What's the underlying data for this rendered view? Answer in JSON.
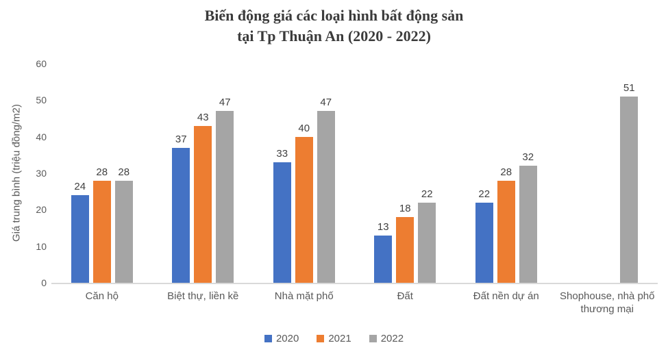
{
  "title": {
    "line1": "Biến động giá các loại hình bất động sản",
    "line2": "tại Tp Thuận An (2020 - 2022)"
  },
  "chart_data": {
    "type": "bar",
    "title": "Biến động giá các loại hình bất động sản tại Tp Thuận An (2020 - 2022)",
    "xlabel": "",
    "ylabel": "Giá trung bình (triệu đồng/m2)",
    "ylim": [
      0,
      60
    ],
    "yticks": [
      0,
      10,
      20,
      30,
      40,
      50,
      60
    ],
    "grid": false,
    "data_labels": true,
    "legend_position": "bottom",
    "categories": [
      "Căn hộ",
      "Biệt thự, liền kề",
      "Nhà mặt phố",
      "Đất",
      "Đất nền dự án",
      "Shophouse, nhà phố thương mại"
    ],
    "series": [
      {
        "name": "2020",
        "color": "#4472C4",
        "values": [
          24,
          37,
          33,
          13,
          22,
          null
        ]
      },
      {
        "name": "2021",
        "color": "#ED7D31",
        "values": [
          28,
          43,
          40,
          18,
          28,
          null
        ]
      },
      {
        "name": "2022",
        "color": "#A5A5A5",
        "values": [
          28,
          47,
          47,
          22,
          32,
          51
        ]
      }
    ]
  }
}
